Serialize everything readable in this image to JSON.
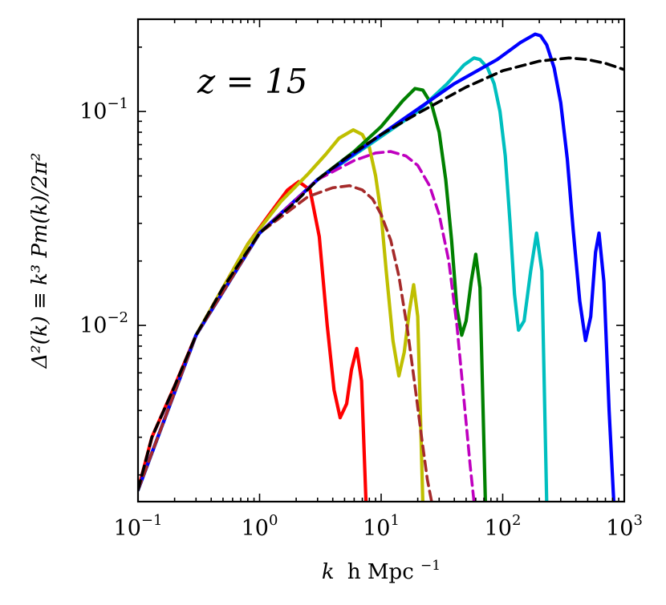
{
  "chart_data": {
    "type": "line",
    "xscale": "log",
    "yscale": "log",
    "xlim": [
      0.1,
      1000
    ],
    "ylim": [
      0.0015,
      0.27
    ],
    "xlabel_parts": {
      "var": "k",
      "unit": "h Mpc",
      "exp": "−1"
    },
    "ylabel": "Δ²(k) ≡ k³ Pm(k)/2π²",
    "annotation": "z = 15",
    "x_ticks": [
      {
        "value": 0.1,
        "base": "10",
        "exp": "−1"
      },
      {
        "value": 1,
        "base": "10",
        "exp": "0"
      },
      {
        "value": 10,
        "base": "10",
        "exp": "1"
      },
      {
        "value": 100,
        "base": "10",
        "exp": "2"
      },
      {
        "value": 1000,
        "base": "10",
        "exp": "3"
      }
    ],
    "y_ticks": [
      {
        "value": 0.01,
        "base": "10",
        "exp": "−2"
      },
      {
        "value": 0.1,
        "base": "10",
        "exp": "−1"
      }
    ],
    "series": [
      {
        "name": "red",
        "color": "#ff0000",
        "dash": false,
        "width": 4.2,
        "points": [
          [
            0.1,
            0.0017
          ],
          [
            0.13,
            0.003
          ],
          [
            0.2,
            0.0052
          ],
          [
            0.3,
            0.009
          ],
          [
            0.5,
            0.015
          ],
          [
            0.8,
            0.024
          ],
          [
            1.2,
            0.033
          ],
          [
            1.7,
            0.043
          ],
          [
            2.1,
            0.047
          ],
          [
            2.6,
            0.043
          ],
          [
            3.1,
            0.026
          ],
          [
            3.6,
            0.01
          ],
          [
            4.1,
            0.005
          ],
          [
            4.6,
            0.0037
          ],
          [
            5.2,
            0.0043
          ],
          [
            5.7,
            0.0062
          ],
          [
            6.3,
            0.0078
          ],
          [
            6.9,
            0.0055
          ],
          [
            7.5,
            0.0015
          ]
        ]
      },
      {
        "name": "yellow",
        "color": "#bfbf00",
        "dash": false,
        "width": 4.2,
        "points": [
          [
            0.1,
            0.0017
          ],
          [
            0.3,
            0.009
          ],
          [
            0.8,
            0.024
          ],
          [
            1.5,
            0.038
          ],
          [
            2.5,
            0.051
          ],
          [
            3.5,
            0.063
          ],
          [
            4.5,
            0.075
          ],
          [
            5.9,
            0.082
          ],
          [
            7.0,
            0.078
          ],
          [
            8.0,
            0.068
          ],
          [
            9.0,
            0.05
          ],
          [
            10.0,
            0.033
          ],
          [
            11.0,
            0.018
          ],
          [
            12.5,
            0.0085
          ],
          [
            14.0,
            0.0058
          ],
          [
            15.5,
            0.0075
          ],
          [
            17.0,
            0.0115
          ],
          [
            18.5,
            0.0155
          ],
          [
            20.0,
            0.011
          ],
          [
            22.0,
            0.0015
          ]
        ]
      },
      {
        "name": "green",
        "color": "#008000",
        "dash": false,
        "width": 4.2,
        "points": [
          [
            0.1,
            0.0017
          ],
          [
            0.3,
            0.009
          ],
          [
            1.0,
            0.027
          ],
          [
            3.0,
            0.048
          ],
          [
            6.0,
            0.065
          ],
          [
            10.0,
            0.085
          ],
          [
            15.0,
            0.112
          ],
          [
            19.0,
            0.128
          ],
          [
            22.0,
            0.126
          ],
          [
            26.0,
            0.108
          ],
          [
            30.0,
            0.08
          ],
          [
            34.0,
            0.048
          ],
          [
            38.0,
            0.025
          ],
          [
            42.0,
            0.012
          ],
          [
            46.0,
            0.009
          ],
          [
            50.0,
            0.0105
          ],
          [
            55.0,
            0.016
          ],
          [
            60.0,
            0.0215
          ],
          [
            65.0,
            0.015
          ],
          [
            72.0,
            0.0015
          ]
        ]
      },
      {
        "name": "cyan",
        "color": "#00bfbf",
        "dash": false,
        "width": 4.2,
        "points": [
          [
            0.1,
            0.0017
          ],
          [
            0.3,
            0.009
          ],
          [
            1.0,
            0.027
          ],
          [
            3.0,
            0.048
          ],
          [
            8.0,
            0.07
          ],
          [
            20.0,
            0.1
          ],
          [
            35.0,
            0.135
          ],
          [
            48.0,
            0.165
          ],
          [
            58.0,
            0.178
          ],
          [
            65.0,
            0.175
          ],
          [
            75.0,
            0.16
          ],
          [
            85.0,
            0.135
          ],
          [
            95.0,
            0.1
          ],
          [
            105.0,
            0.062
          ],
          [
            115.0,
            0.03
          ],
          [
            125.0,
            0.014
          ],
          [
            135.0,
            0.0095
          ],
          [
            150.0,
            0.0105
          ],
          [
            170.0,
            0.018
          ],
          [
            190.0,
            0.027
          ],
          [
            210.0,
            0.018
          ],
          [
            230.0,
            0.0015
          ]
        ]
      },
      {
        "name": "blue",
        "color": "#0000ff",
        "dash": false,
        "width": 4.2,
        "points": [
          [
            0.1,
            0.0017
          ],
          [
            0.3,
            0.009
          ],
          [
            1.0,
            0.027
          ],
          [
            3.0,
            0.048
          ],
          [
            10.0,
            0.078
          ],
          [
            40.0,
            0.135
          ],
          [
            90.0,
            0.175
          ],
          [
            140.0,
            0.21
          ],
          [
            185.0,
            0.23
          ],
          [
            205.0,
            0.226
          ],
          [
            230.0,
            0.205
          ],
          [
            265.0,
            0.16
          ],
          [
            300.0,
            0.11
          ],
          [
            340.0,
            0.06
          ],
          [
            380.0,
            0.028
          ],
          [
            430.0,
            0.013
          ],
          [
            480.0,
            0.0085
          ],
          [
            530.0,
            0.011
          ],
          [
            580.0,
            0.022
          ],
          [
            620.0,
            0.027
          ],
          [
            680.0,
            0.016
          ],
          [
            750.0,
            0.004
          ],
          [
            820.0,
            0.0015
          ]
        ]
      },
      {
        "name": "magenta dashed",
        "color": "#bf00bf",
        "dash": true,
        "width": 3.6,
        "points": [
          [
            0.1,
            0.0017
          ],
          [
            0.3,
            0.009
          ],
          [
            1.0,
            0.027
          ],
          [
            3.0,
            0.048
          ],
          [
            6.0,
            0.059
          ],
          [
            9.0,
            0.064
          ],
          [
            12.0,
            0.065
          ],
          [
            16.0,
            0.062
          ],
          [
            20.0,
            0.056
          ],
          [
            25.0,
            0.045
          ],
          [
            30.0,
            0.033
          ],
          [
            36.0,
            0.02
          ],
          [
            42.0,
            0.01
          ],
          [
            48.0,
            0.0045
          ],
          [
            54.0,
            0.0022
          ],
          [
            58.0,
            0.0015
          ]
        ]
      },
      {
        "name": "brown dashed",
        "color": "#a52a2a",
        "dash": true,
        "width": 3.6,
        "points": [
          [
            0.1,
            0.0017
          ],
          [
            0.3,
            0.009
          ],
          [
            1.0,
            0.027
          ],
          [
            2.5,
            0.04
          ],
          [
            4.0,
            0.044
          ],
          [
            5.5,
            0.045
          ],
          [
            7.0,
            0.043
          ],
          [
            8.5,
            0.039
          ],
          [
            10.0,
            0.033
          ],
          [
            12.0,
            0.025
          ],
          [
            14.0,
            0.017
          ],
          [
            16.5,
            0.0095
          ],
          [
            19.0,
            0.0052
          ],
          [
            21.5,
            0.003
          ],
          [
            24.0,
            0.0019
          ],
          [
            26.0,
            0.0015
          ]
        ]
      },
      {
        "name": "black dashed",
        "color": "#000000",
        "dash": true,
        "width": 3.6,
        "points": [
          [
            0.1,
            0.0017
          ],
          [
            0.13,
            0.003
          ],
          [
            0.2,
            0.0052
          ],
          [
            0.3,
            0.009
          ],
          [
            0.5,
            0.015
          ],
          [
            1.0,
            0.027
          ],
          [
            2.0,
            0.038
          ],
          [
            3.0,
            0.048
          ],
          [
            5.0,
            0.06
          ],
          [
            10.0,
            0.078
          ],
          [
            20.0,
            0.098
          ],
          [
            50.0,
            0.13
          ],
          [
            100.0,
            0.155
          ],
          [
            200.0,
            0.172
          ],
          [
            350.0,
            0.178
          ],
          [
            500.0,
            0.175
          ],
          [
            700.0,
            0.168
          ],
          [
            1000.0,
            0.157
          ]
        ]
      }
    ]
  }
}
